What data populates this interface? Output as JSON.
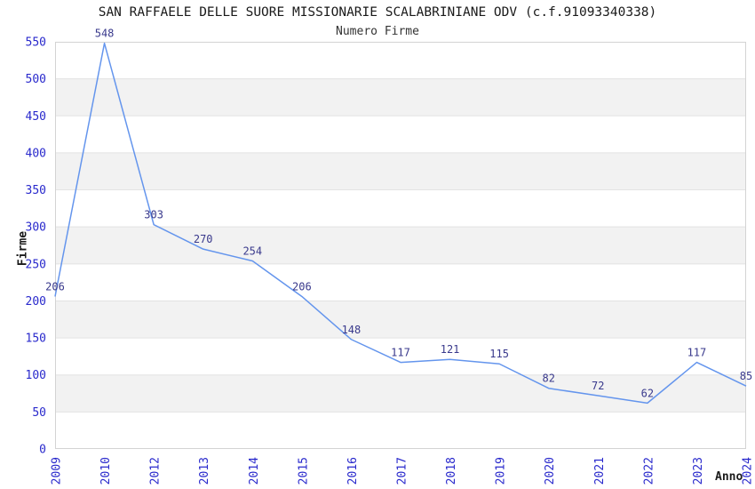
{
  "chart_data": {
    "type": "line",
    "title": "SAN RAFFAELE DELLE SUORE MISSIONARIE SCALABRINIANE ODV (c.f.91093340338)",
    "subtitle": "Numero Firme",
    "xlabel": "Anno",
    "ylabel": "Firme",
    "categories": [
      "2009",
      "2010",
      "2012",
      "2013",
      "2014",
      "2015",
      "2016",
      "2017",
      "2018",
      "2019",
      "2020",
      "2021",
      "2022",
      "2023",
      "2024"
    ],
    "values": [
      206,
      548,
      303,
      270,
      254,
      206,
      148,
      117,
      121,
      115,
      82,
      72,
      62,
      117,
      85
    ],
    "ylim": [
      0,
      550
    ],
    "ytick_step": 50,
    "grid": "alternating-horizontal-bands",
    "legend": "none",
    "colors": {
      "line": "#6495ED",
      "tick_label": "#2929CC",
      "value_label": "#39398C",
      "band": "#F2F2F2",
      "gridline": "#E3E3E3",
      "border": "#D3D3D3"
    }
  }
}
